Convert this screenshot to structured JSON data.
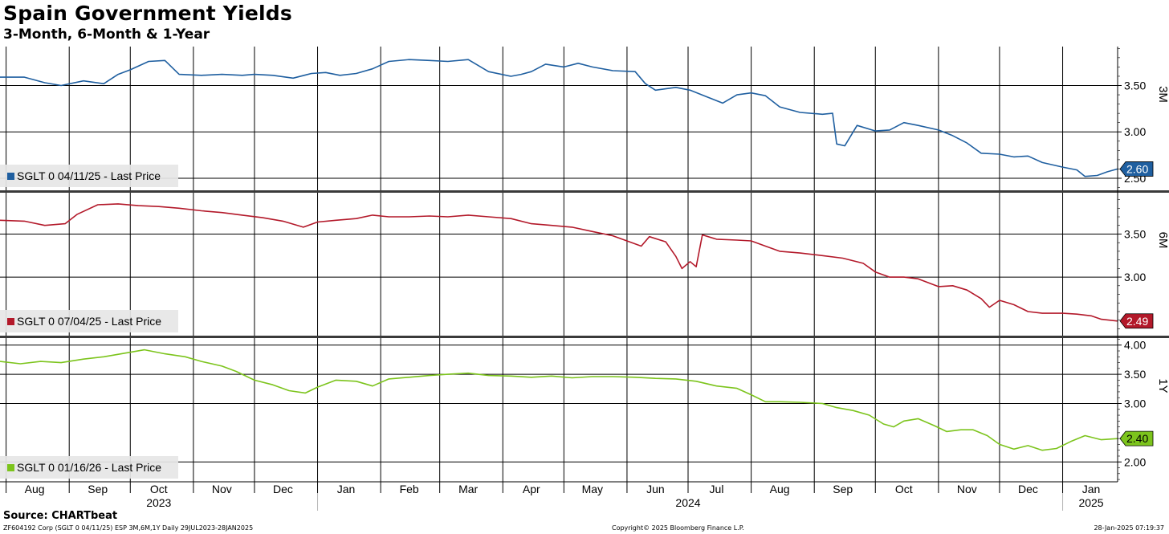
{
  "header": {
    "title": "Spain Government Yields",
    "subtitle": "3-Month, 6-Month & 1-Year"
  },
  "footer": {
    "source": "Source: CHARTbeat",
    "left": "ZF604192 Corp (SGLT 0 04/11/25) ESP 3M,6M,1Y  Daily 29JUL2023-28JAN2025",
    "center": "Copyright© 2025 Bloomberg Finance L.P.",
    "right": "28-Jan-2025 07:19:37"
  },
  "chart_data": {
    "type": "line",
    "x_start": "2023-07-29",
    "x_end": "2025-01-28",
    "x_tick_labels": [
      {
        "label": "Aug",
        "date": "2023-08-15"
      },
      {
        "label": "Sep",
        "date": "2023-09-15"
      },
      {
        "label": "Oct",
        "date": "2023-10-15"
      },
      {
        "label": "Nov",
        "date": "2023-11-15"
      },
      {
        "label": "Dec",
        "date": "2023-12-15"
      },
      {
        "label": "Jan",
        "date": "2024-01-15"
      },
      {
        "label": "Feb",
        "date": "2024-02-15"
      },
      {
        "label": "Mar",
        "date": "2024-03-15"
      },
      {
        "label": "Apr",
        "date": "2024-04-15"
      },
      {
        "label": "May",
        "date": "2024-05-15"
      },
      {
        "label": "Jun",
        "date": "2024-06-15"
      },
      {
        "label": "Jul",
        "date": "2024-07-15"
      },
      {
        "label": "Aug",
        "date": "2024-08-15"
      },
      {
        "label": "Sep",
        "date": "2024-09-15"
      },
      {
        "label": "Oct",
        "date": "2024-10-15"
      },
      {
        "label": "Nov",
        "date": "2024-11-15"
      },
      {
        "label": "Dec",
        "date": "2024-12-15"
      },
      {
        "label": "Jan",
        "date": "2025-01-15"
      }
    ],
    "year_labels": [
      {
        "label": "2023",
        "date": "2023-10-15"
      },
      {
        "label": "2024",
        "date": "2024-07-01"
      },
      {
        "label": "2025",
        "date": "2025-01-15"
      }
    ],
    "gridline_dates": [
      "2023-08-01",
      "2023-09-01",
      "2023-10-01",
      "2023-11-01",
      "2023-12-01",
      "2024-01-01",
      "2024-02-01",
      "2024-03-01",
      "2024-04-01",
      "2024-05-01",
      "2024-06-01",
      "2024-07-01",
      "2024-08-01",
      "2024-09-01",
      "2024-10-01",
      "2024-11-01",
      "2024-12-01",
      "2025-01-01"
    ],
    "panels": [
      {
        "axis_title": "3M",
        "legend": "SGLT 0 04/11/25 - Last Price",
        "color": "#1f5fa0",
        "ylim": [
          2.37,
          3.92
        ],
        "yticks": [
          "2.50",
          "3.00",
          "3.50"
        ],
        "last_value": "2.60",
        "grid": true,
        "series": [
          [
            "2023-07-29",
            3.59
          ],
          [
            "2023-08-10",
            3.59
          ],
          [
            "2023-08-20",
            3.53
          ],
          [
            "2023-08-28",
            3.5
          ],
          [
            "2023-09-08",
            3.55
          ],
          [
            "2023-09-18",
            3.52
          ],
          [
            "2023-09-25",
            3.62
          ],
          [
            "2023-10-01",
            3.67
          ],
          [
            "2023-10-10",
            3.76
          ],
          [
            "2023-10-18",
            3.77
          ],
          [
            "2023-10-25",
            3.62
          ],
          [
            "2023-11-05",
            3.61
          ],
          [
            "2023-11-15",
            3.62
          ],
          [
            "2023-11-25",
            3.61
          ],
          [
            "2023-12-01",
            3.62
          ],
          [
            "2023-12-10",
            3.61
          ],
          [
            "2023-12-20",
            3.58
          ],
          [
            "2023-12-29",
            3.63
          ],
          [
            "2024-01-05",
            3.64
          ],
          [
            "2024-01-12",
            3.61
          ],
          [
            "2024-01-20",
            3.63
          ],
          [
            "2024-01-28",
            3.68
          ],
          [
            "2024-02-05",
            3.76
          ],
          [
            "2024-02-15",
            3.78
          ],
          [
            "2024-02-25",
            3.77
          ],
          [
            "2024-03-05",
            3.76
          ],
          [
            "2024-03-15",
            3.78
          ],
          [
            "2024-03-25",
            3.65
          ],
          [
            "2024-04-05",
            3.6
          ],
          [
            "2024-04-10",
            3.62
          ],
          [
            "2024-04-15",
            3.65
          ],
          [
            "2024-04-22",
            3.73
          ],
          [
            "2024-05-01",
            3.7
          ],
          [
            "2024-05-08",
            3.74
          ],
          [
            "2024-05-15",
            3.7
          ],
          [
            "2024-05-25",
            3.66
          ],
          [
            "2024-06-05",
            3.65
          ],
          [
            "2024-06-10",
            3.52
          ],
          [
            "2024-06-15",
            3.45
          ],
          [
            "2024-06-25",
            3.48
          ],
          [
            "2024-07-02",
            3.45
          ],
          [
            "2024-07-10",
            3.38
          ],
          [
            "2024-07-18",
            3.31
          ],
          [
            "2024-07-25",
            3.4
          ],
          [
            "2024-08-01",
            3.42
          ],
          [
            "2024-08-08",
            3.39
          ],
          [
            "2024-08-15",
            3.27
          ],
          [
            "2024-08-25",
            3.21
          ],
          [
            "2024-09-05",
            3.19
          ],
          [
            "2024-09-10",
            3.2
          ],
          [
            "2024-09-12",
            2.87
          ],
          [
            "2024-09-16",
            2.85
          ],
          [
            "2024-09-22",
            3.07
          ],
          [
            "2024-10-01",
            3.01
          ],
          [
            "2024-10-08",
            3.02
          ],
          [
            "2024-10-15",
            3.1
          ],
          [
            "2024-10-22",
            3.07
          ],
          [
            "2024-11-01",
            3.02
          ],
          [
            "2024-11-08",
            2.96
          ],
          [
            "2024-11-15",
            2.88
          ],
          [
            "2024-11-22",
            2.77
          ],
          [
            "2024-12-01",
            2.76
          ],
          [
            "2024-12-08",
            2.73
          ],
          [
            "2024-12-15",
            2.74
          ],
          [
            "2024-12-22",
            2.67
          ],
          [
            "2025-01-01",
            2.62
          ],
          [
            "2025-01-08",
            2.59
          ],
          [
            "2025-01-12",
            2.52
          ],
          [
            "2025-01-18",
            2.53
          ],
          [
            "2025-01-23",
            2.57
          ],
          [
            "2025-01-28",
            2.6
          ]
        ]
      },
      {
        "axis_title": "6M",
        "legend": "SGLT 0 07/04/25 - Last Price",
        "color": "#b3192a",
        "ylim": [
          2.32,
          3.98
        ],
        "yticks": [
          "3.00",
          "3.50"
        ],
        "last_value": "2.49",
        "grid": true,
        "series": [
          [
            "2023-07-29",
            3.66
          ],
          [
            "2023-08-10",
            3.65
          ],
          [
            "2023-08-20",
            3.6
          ],
          [
            "2023-08-30",
            3.62
          ],
          [
            "2023-09-05",
            3.73
          ],
          [
            "2023-09-15",
            3.84
          ],
          [
            "2023-09-25",
            3.85
          ],
          [
            "2023-10-05",
            3.83
          ],
          [
            "2023-10-15",
            3.82
          ],
          [
            "2023-10-25",
            3.8
          ],
          [
            "2023-11-05",
            3.77
          ],
          [
            "2023-11-15",
            3.75
          ],
          [
            "2023-11-25",
            3.72
          ],
          [
            "2023-12-05",
            3.69
          ],
          [
            "2023-12-15",
            3.65
          ],
          [
            "2023-12-25",
            3.58
          ],
          [
            "2024-01-01",
            3.64
          ],
          [
            "2024-01-10",
            3.66
          ],
          [
            "2024-01-20",
            3.68
          ],
          [
            "2024-01-28",
            3.72
          ],
          [
            "2024-02-05",
            3.7
          ],
          [
            "2024-02-15",
            3.7
          ],
          [
            "2024-02-25",
            3.71
          ],
          [
            "2024-03-05",
            3.7
          ],
          [
            "2024-03-15",
            3.72
          ],
          [
            "2024-03-25",
            3.7
          ],
          [
            "2024-04-05",
            3.68
          ],
          [
            "2024-04-15",
            3.62
          ],
          [
            "2024-04-25",
            3.6
          ],
          [
            "2024-05-05",
            3.58
          ],
          [
            "2024-05-15",
            3.53
          ],
          [
            "2024-05-25",
            3.48
          ],
          [
            "2024-06-01",
            3.42
          ],
          [
            "2024-06-08",
            3.36
          ],
          [
            "2024-06-12",
            3.47
          ],
          [
            "2024-06-20",
            3.41
          ],
          [
            "2024-06-25",
            3.24
          ],
          [
            "2024-06-28",
            3.1
          ],
          [
            "2024-07-02",
            3.18
          ],
          [
            "2024-07-05",
            3.12
          ],
          [
            "2024-07-08",
            3.49
          ],
          [
            "2024-07-15",
            3.44
          ],
          [
            "2024-07-25",
            3.43
          ],
          [
            "2024-08-01",
            3.42
          ],
          [
            "2024-08-08",
            3.36
          ],
          [
            "2024-08-15",
            3.3
          ],
          [
            "2024-08-25",
            3.28
          ],
          [
            "2024-09-05",
            3.25
          ],
          [
            "2024-09-15",
            3.22
          ],
          [
            "2024-09-25",
            3.16
          ],
          [
            "2024-10-01",
            3.06
          ],
          [
            "2024-10-08",
            3.0
          ],
          [
            "2024-10-15",
            3.0
          ],
          [
            "2024-10-22",
            2.98
          ],
          [
            "2024-11-01",
            2.89
          ],
          [
            "2024-11-08",
            2.9
          ],
          [
            "2024-11-15",
            2.85
          ],
          [
            "2024-11-22",
            2.75
          ],
          [
            "2024-11-26",
            2.65
          ],
          [
            "2024-12-01",
            2.73
          ],
          [
            "2024-12-08",
            2.68
          ],
          [
            "2024-12-15",
            2.6
          ],
          [
            "2024-12-22",
            2.58
          ],
          [
            "2025-01-01",
            2.58
          ],
          [
            "2025-01-08",
            2.57
          ],
          [
            "2025-01-15",
            2.55
          ],
          [
            "2025-01-20",
            2.51
          ],
          [
            "2025-01-28",
            2.49
          ]
        ]
      },
      {
        "axis_title": "1Y",
        "legend": "SGLT 0 01/16/26 - Last Price",
        "color": "#7cc41c",
        "ylim": [
          1.66,
          4.12
        ],
        "yticks": [
          "2.00",
          "3.00",
          "3.50",
          "4.00"
        ],
        "last_value": "2.40",
        "grid": true,
        "series": [
          [
            "2023-07-29",
            3.72
          ],
          [
            "2023-08-08",
            3.68
          ],
          [
            "2023-08-18",
            3.72
          ],
          [
            "2023-08-28",
            3.7
          ],
          [
            "2023-09-08",
            3.76
          ],
          [
            "2023-09-18",
            3.8
          ],
          [
            "2023-09-28",
            3.86
          ],
          [
            "2023-10-08",
            3.92
          ],
          [
            "2023-10-18",
            3.85
          ],
          [
            "2023-10-28",
            3.8
          ],
          [
            "2023-11-05",
            3.72
          ],
          [
            "2023-11-15",
            3.64
          ],
          [
            "2023-11-22",
            3.55
          ],
          [
            "2023-12-01",
            3.4
          ],
          [
            "2023-12-10",
            3.32
          ],
          [
            "2023-12-18",
            3.22
          ],
          [
            "2023-12-26",
            3.18
          ],
          [
            "2024-01-01",
            3.28
          ],
          [
            "2024-01-10",
            3.4
          ],
          [
            "2024-01-20",
            3.38
          ],
          [
            "2024-01-28",
            3.3
          ],
          [
            "2024-02-05",
            3.42
          ],
          [
            "2024-02-15",
            3.45
          ],
          [
            "2024-02-25",
            3.48
          ],
          [
            "2024-03-05",
            3.5
          ],
          [
            "2024-03-15",
            3.52
          ],
          [
            "2024-03-25",
            3.48
          ],
          [
            "2024-04-05",
            3.47
          ],
          [
            "2024-04-15",
            3.45
          ],
          [
            "2024-04-25",
            3.47
          ],
          [
            "2024-05-05",
            3.44
          ],
          [
            "2024-05-15",
            3.46
          ],
          [
            "2024-05-25",
            3.46
          ],
          [
            "2024-06-05",
            3.45
          ],
          [
            "2024-06-15",
            3.43
          ],
          [
            "2024-06-25",
            3.42
          ],
          [
            "2024-07-05",
            3.38
          ],
          [
            "2024-07-15",
            3.3
          ],
          [
            "2024-07-25",
            3.26
          ],
          [
            "2024-08-01",
            3.15
          ],
          [
            "2024-08-08",
            3.03
          ],
          [
            "2024-08-15",
            3.03
          ],
          [
            "2024-08-25",
            3.02
          ],
          [
            "2024-09-05",
            3.0
          ],
          [
            "2024-09-12",
            2.93
          ],
          [
            "2024-09-20",
            2.88
          ],
          [
            "2024-09-28",
            2.8
          ],
          [
            "2024-10-05",
            2.65
          ],
          [
            "2024-10-10",
            2.6
          ],
          [
            "2024-10-15",
            2.7
          ],
          [
            "2024-10-22",
            2.74
          ],
          [
            "2024-10-30",
            2.62
          ],
          [
            "2024-11-05",
            2.52
          ],
          [
            "2024-11-12",
            2.55
          ],
          [
            "2024-11-18",
            2.55
          ],
          [
            "2024-11-25",
            2.45
          ],
          [
            "2024-12-01",
            2.3
          ],
          [
            "2024-12-08",
            2.22
          ],
          [
            "2024-12-15",
            2.28
          ],
          [
            "2024-12-22",
            2.2
          ],
          [
            "2024-12-29",
            2.23
          ],
          [
            "2025-01-05",
            2.35
          ],
          [
            "2025-01-12",
            2.45
          ],
          [
            "2025-01-20",
            2.38
          ],
          [
            "2025-01-28",
            2.4
          ]
        ]
      }
    ]
  }
}
